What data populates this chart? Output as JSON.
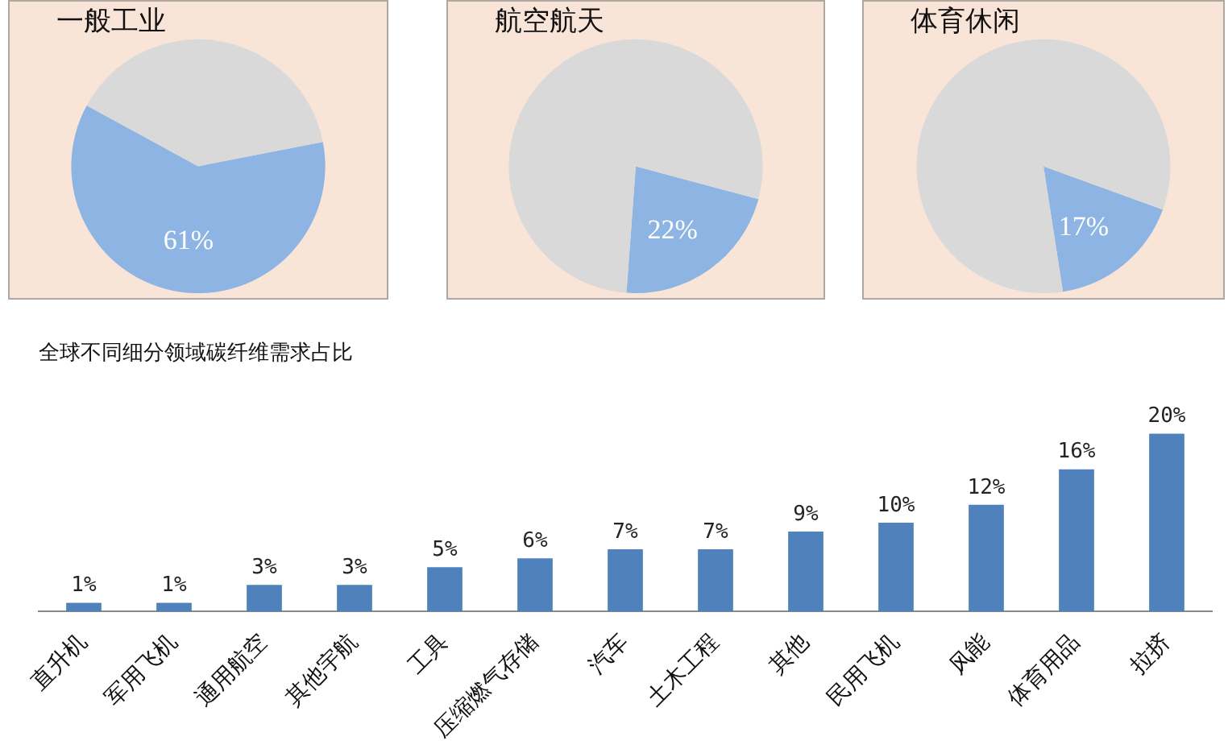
{
  "chart_data": [
    {
      "type": "pie",
      "title": "一般工业",
      "categories": [
        null,
        null
      ],
      "values": [
        61,
        39
      ],
      "colors": [
        "#8eb4e3",
        "#d9d9d9"
      ],
      "value_labels": [
        "61%",
        null
      ]
    },
    {
      "type": "pie",
      "title": "航空航天",
      "categories": [
        null,
        null
      ],
      "values": [
        22,
        78
      ],
      "colors": [
        "#8eb4e3",
        "#d9d9d9"
      ],
      "value_labels": [
        "22%",
        null
      ]
    },
    {
      "type": "pie",
      "title": "体育休闲",
      "categories": [
        null,
        null
      ],
      "values": [
        17,
        83
      ],
      "colors": [
        "#8eb4e3",
        "#d9d9d9"
      ],
      "value_labels": [
        "17%",
        null
      ]
    },
    {
      "type": "bar",
      "title": "全球不同细分领域碳纤维需求占比",
      "categories": [
        "直升机",
        "军用飞机",
        "通用航空",
        "其他宇航",
        "工具",
        "压缩燃气存储",
        "汽车",
        "土木工程",
        "其他",
        "民用飞机",
        "风能",
        "体育用品",
        "拉挤"
      ],
      "color": "#4f81bd",
      "values": [
        1,
        1,
        3,
        3,
        5,
        6,
        7,
        7,
        9,
        10,
        12,
        16,
        20
      ],
      "value_labels": [
        "1%",
        "1%",
        "3%",
        "3%",
        "5%",
        "6%",
        "7%",
        "7%",
        "9%",
        "10%",
        "12%",
        "16%",
        "20%"
      ]
    }
  ]
}
